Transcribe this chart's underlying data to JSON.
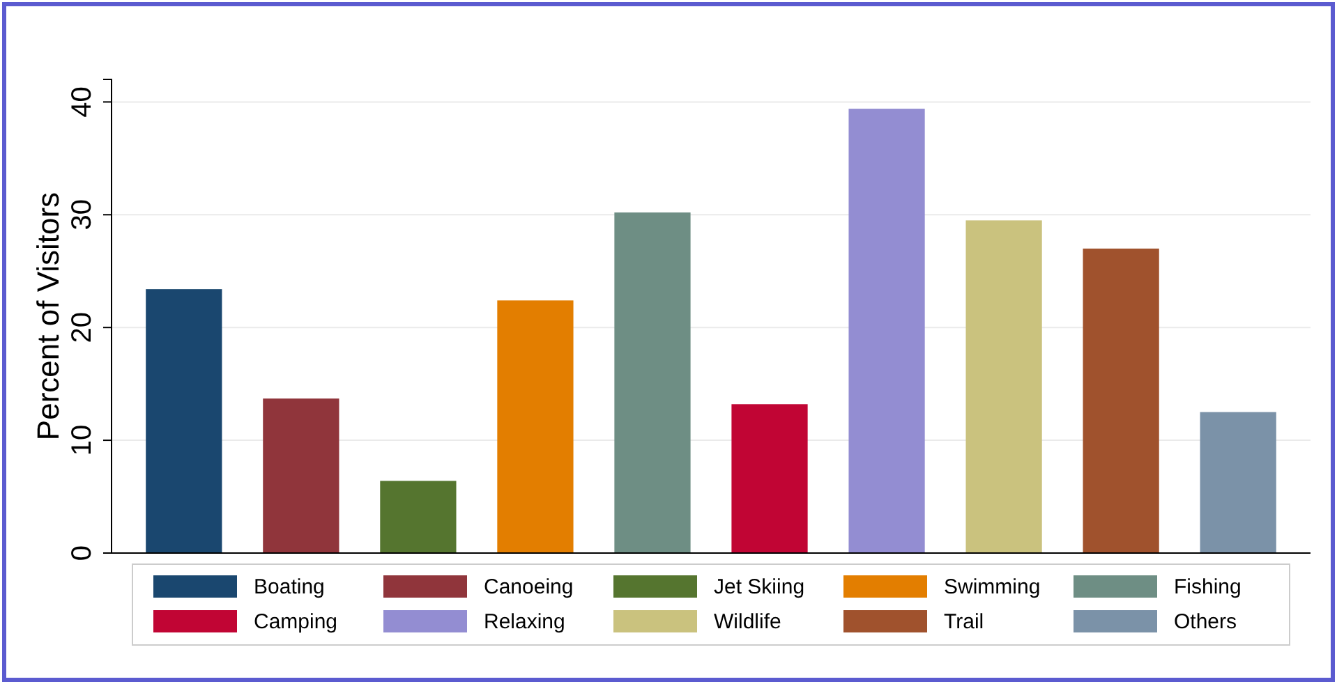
{
  "chart_data": {
    "type": "bar",
    "ylabel": "Percent of Visitors",
    "categories": [
      null,
      null,
      null,
      null,
      null,
      null,
      null,
      null,
      null,
      null
    ],
    "series": [
      {
        "name": "Boating",
        "color": "#1a476f",
        "values": [
          23.4,
          null,
          null,
          null,
          null,
          null,
          null,
          null,
          null,
          null
        ]
      },
      {
        "name": "Canoeing",
        "color": "#90353b",
        "values": [
          null,
          13.7,
          null,
          null,
          null,
          null,
          null,
          null,
          null,
          null
        ]
      },
      {
        "name": "Jet Skiing",
        "color": "#55752f",
        "values": [
          null,
          null,
          6.4,
          null,
          null,
          null,
          null,
          null,
          null,
          null
        ]
      },
      {
        "name": "Swimming",
        "color": "#e37e00",
        "values": [
          null,
          null,
          null,
          22.4,
          null,
          null,
          null,
          null,
          null,
          null
        ]
      },
      {
        "name": "Fishing",
        "color": "#6e8e84",
        "values": [
          null,
          null,
          null,
          null,
          30.2,
          null,
          null,
          null,
          null,
          null
        ]
      },
      {
        "name": "Camping",
        "color": "#c10534",
        "values": [
          null,
          null,
          null,
          null,
          null,
          13.2,
          null,
          null,
          null,
          null
        ]
      },
      {
        "name": "Relaxing",
        "color": "#938dd2",
        "values": [
          null,
          null,
          null,
          null,
          null,
          null,
          39.4,
          null,
          null,
          null
        ]
      },
      {
        "name": "Wildlife",
        "color": "#cac27e",
        "values": [
          null,
          null,
          null,
          null,
          null,
          null,
          null,
          29.5,
          null,
          null
        ]
      },
      {
        "name": "Trail",
        "color": "#a0522d",
        "values": [
          null,
          null,
          null,
          null,
          null,
          null,
          null,
          null,
          27.0,
          null
        ]
      },
      {
        "name": "Others",
        "color": "#7b92a8",
        "values": [
          null,
          null,
          null,
          null,
          null,
          null,
          null,
          null,
          null,
          12.5
        ]
      }
    ],
    "ylim": [
      0,
      42
    ],
    "yticks": [
      0,
      10,
      20,
      30,
      40
    ],
    "grid": "y",
    "legend": "bottom"
  }
}
